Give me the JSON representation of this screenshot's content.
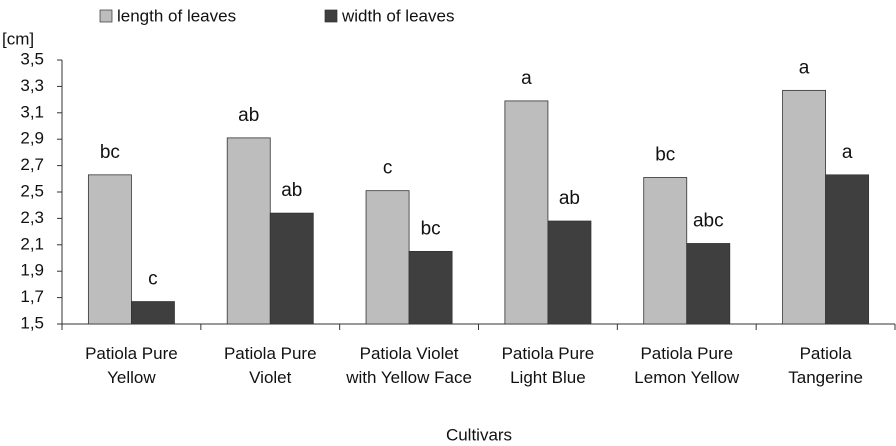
{
  "chart_data": {
    "type": "bar",
    "y_label": "[cm]",
    "x_label": "Cultivars",
    "categories": [
      "Patiola Pure Yellow",
      "Patiola Pure Violet",
      "Patiola Violet with Yellow Face",
      "Patiola Pure Light Blue",
      "Patiola Pure Lemon Yellow",
      "Patiola Tangerine"
    ],
    "series": [
      {
        "name": "length of leaves",
        "color": "#bdbdbd",
        "values": [
          2.63,
          2.91,
          2.51,
          3.19,
          2.61,
          3.27
        ],
        "letters": [
          "bc",
          "ab",
          "c",
          "a",
          "bc",
          "a"
        ]
      },
      {
        "name": "width of leaves",
        "color": "#3f3f3f",
        "values": [
          1.67,
          2.34,
          2.05,
          2.28,
          2.11,
          2.63
        ],
        "letters": [
          "c",
          "ab",
          "bc",
          "ab",
          "abc",
          "a"
        ]
      }
    ],
    "ylim": [
      1.5,
      3.5
    ],
    "yticks": [
      {
        "value": 1.5,
        "label": "1,5"
      },
      {
        "value": 1.7,
        "label": "1,7"
      },
      {
        "value": 1.9,
        "label": "1,9"
      },
      {
        "value": 2.1,
        "label": "2,1"
      },
      {
        "value": 2.3,
        "label": "2,3"
      },
      {
        "value": 2.5,
        "label": "2,5"
      },
      {
        "value": 2.7,
        "label": "2,7"
      },
      {
        "value": 2.9,
        "label": "2,9"
      },
      {
        "value": 3.1,
        "label": "3,1"
      },
      {
        "value": 3.3,
        "label": "3,3"
      },
      {
        "value": 3.5,
        "label": "3,5"
      }
    ],
    "legend": "top"
  }
}
